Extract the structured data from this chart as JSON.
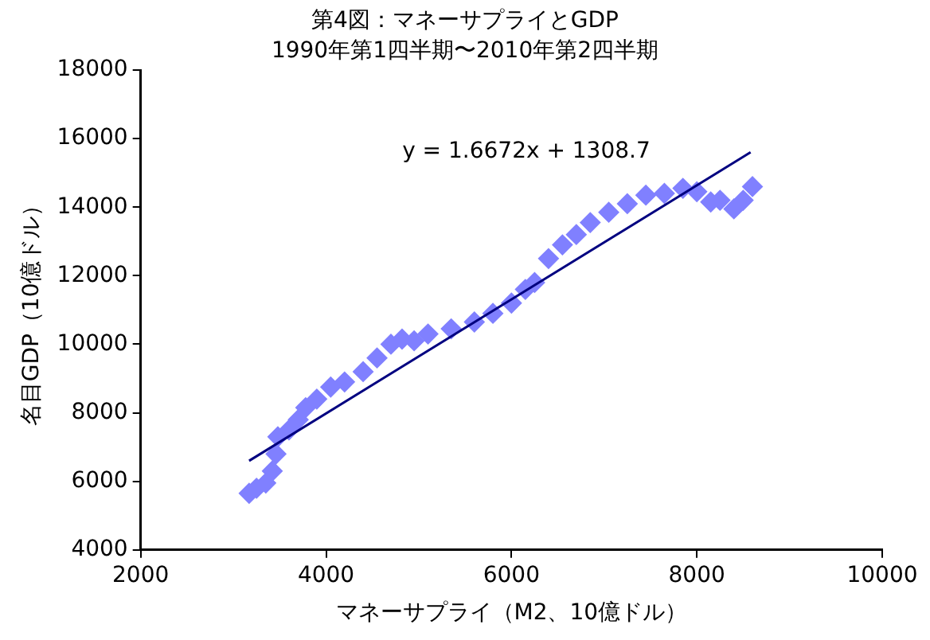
{
  "chart_data": {
    "type": "scatter",
    "title": "第4図：マネーサプライとGDP",
    "subtitle": "1990年第1四半期〜2010年第2四半期",
    "xlabel": "マネーサプライ（M2、10億ドル）",
    "ylabel": "名目GDP（10億ドル）",
    "xlim": [
      2000,
      10000
    ],
    "xticks": [
      2000,
      4000,
      6000,
      8000,
      10000
    ],
    "ylim": [
      4000,
      18000
    ],
    "yticks": [
      4000,
      6000,
      8000,
      10000,
      12000,
      14000,
      16000,
      18000
    ],
    "grid": false,
    "legend": false,
    "marker": "diamond",
    "series": [
      {
        "color": "#8080ff",
        "x": [
          3170,
          3250,
          3350,
          3420,
          3460,
          3480,
          3600,
          3700,
          3780,
          3900,
          4050,
          4200,
          4400,
          4550,
          4700,
          4820,
          4950,
          5100,
          5350,
          5600,
          5800,
          6000,
          6150,
          6250,
          6400,
          6550,
          6700,
          6850,
          7050,
          7250,
          7450,
          7650,
          7850,
          8000,
          8150,
          8250,
          8400,
          8500,
          8600
        ],
        "values": [
          5650,
          5800,
          5950,
          6300,
          6800,
          7300,
          7500,
          7800,
          8150,
          8400,
          8750,
          8900,
          9200,
          9600,
          10000,
          10150,
          10100,
          10300,
          10450,
          10650,
          10900,
          11200,
          11600,
          11800,
          12500,
          12900,
          13200,
          13550,
          13850,
          14100,
          14350,
          14400,
          14550,
          14450,
          14150,
          14200,
          13950,
          14200,
          14600
        ]
      },
      {
        "type": "line",
        "color": "#000080",
        "marker": "none",
        "x": [
          3170,
          8580
        ],
        "values": [
          6600,
          15600
        ]
      }
    ],
    "annotations": [
      "y = 1.6672x + 1308.7"
    ]
  }
}
